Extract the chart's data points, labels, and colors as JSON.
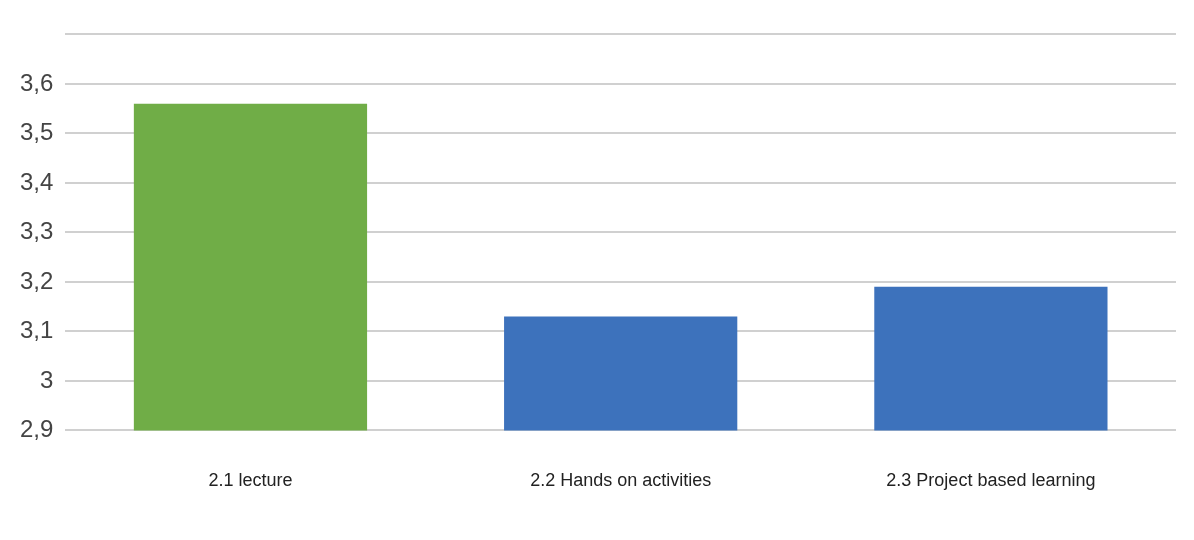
{
  "chart_data": {
    "type": "bar",
    "categories": [
      "2.1 lecture",
      "2.2 Hands on activities",
      "2.3 Project based learning"
    ],
    "values": [
      3.56,
      3.13,
      3.19
    ],
    "colors": [
      "#70ad47",
      "#3d72bc",
      "#3d72bc"
    ],
    "ylim": [
      2.9,
      3.7
    ],
    "yticks": [
      {
        "value": 2.9,
        "label": "2,9"
      },
      {
        "value": 3,
        "label": "3"
      },
      {
        "value": 3.1,
        "label": "3,1"
      },
      {
        "value": 3.2,
        "label": "3,2"
      },
      {
        "value": 3.3,
        "label": "3,3"
      },
      {
        "value": 3.4,
        "label": "3,4"
      },
      {
        "value": 3.5,
        "label": "3,5"
      },
      {
        "value": 3.6,
        "label": "3,6"
      },
      {
        "value": 3.7,
        "label": null
      }
    ],
    "grid": "y",
    "legend": false
  }
}
